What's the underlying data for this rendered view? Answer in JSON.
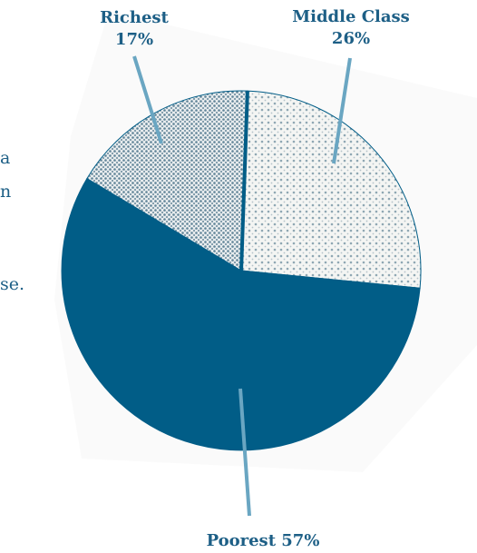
{
  "left_text_fragments": [
    "a",
    "n",
    "se."
  ],
  "chart_data": {
    "type": "pie",
    "categories": [
      "Middle Class",
      "Poorest",
      "Richest"
    ],
    "values": [
      26,
      57,
      17
    ],
    "labels": [
      {
        "name": "Richest",
        "value": "17%"
      },
      {
        "name": "Middle Class",
        "value": "26%"
      },
      {
        "name": "Poorest 57%"
      }
    ],
    "colors": {
      "poorest": "#015d87",
      "middle_class_pattern": "#e9e9e7",
      "richest_pattern": "#b9c2c7",
      "leader_line": "#6aa6c2",
      "label_text": "#1d5f86"
    }
  }
}
